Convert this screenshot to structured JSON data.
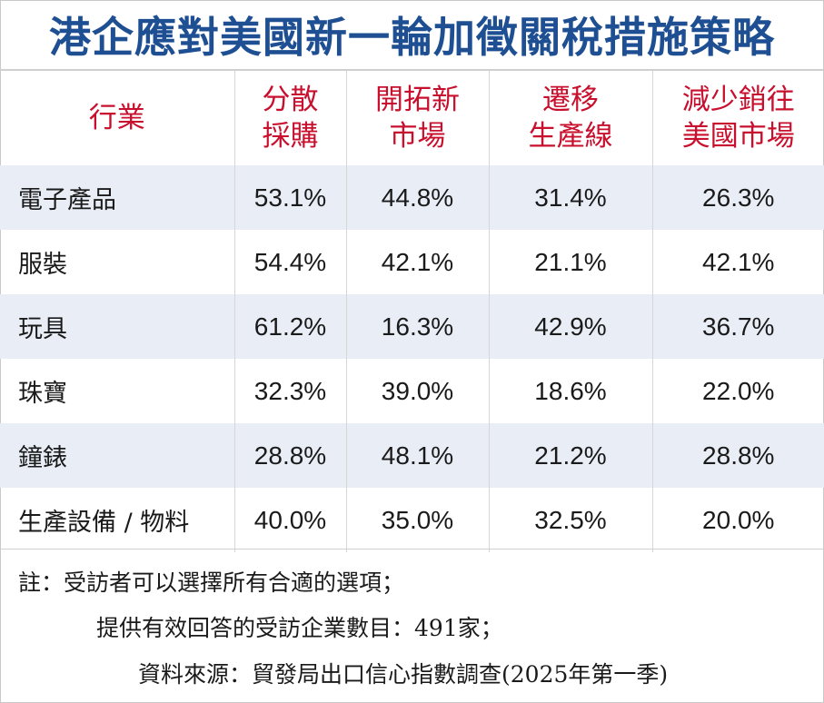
{
  "title": "港企應對美國新一輪加徵關稅措施策略",
  "table": {
    "headers": [
      {
        "lines": [
          "行業"
        ]
      },
      {
        "lines": [
          "分散",
          "採購"
        ]
      },
      {
        "lines": [
          "開拓新",
          "市場"
        ]
      },
      {
        "lines": [
          "遷移",
          "生產線"
        ]
      },
      {
        "lines": [
          "減少銷往",
          "美國市場"
        ]
      }
    ],
    "rows": [
      [
        "電子產品",
        "53.1%",
        "44.8%",
        "31.4%",
        "26.3%"
      ],
      [
        "服裝",
        "54.4%",
        "42.1%",
        "21.1%",
        "42.1%"
      ],
      [
        "玩具",
        "61.2%",
        "16.3%",
        "42.9%",
        "36.7%"
      ],
      [
        "珠寶",
        "32.3%",
        "39.0%",
        "18.6%",
        "22.0%"
      ],
      [
        "鐘錶",
        "28.8%",
        "48.1%",
        "21.2%",
        "28.8%"
      ],
      [
        "生產設備 / 物料",
        "40.0%",
        "35.0%",
        "32.5%",
        "20.0%"
      ]
    ]
  },
  "notes": {
    "line1": "註：受訪者可以選擇所有合適的選項；",
    "line2": "提供有效回答的受訪企業數目：491家；",
    "line3": "資料來源：貿發局出口信心指數調查(2025年第一季)"
  },
  "colors": {
    "title": "#1f4f93",
    "header_text": "#c8102e",
    "row_shade": "#e8edf6"
  }
}
